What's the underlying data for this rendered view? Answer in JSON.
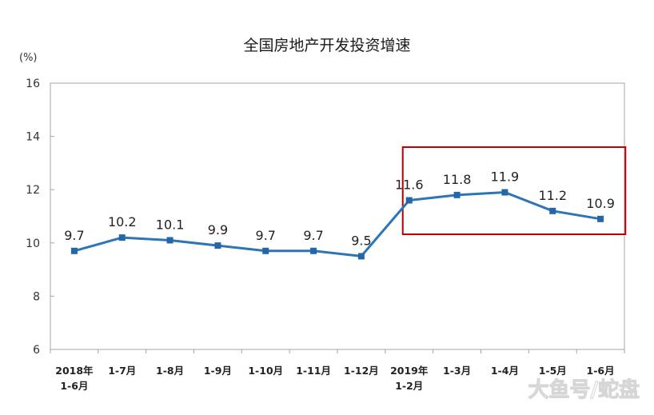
{
  "chart_data": {
    "type": "line",
    "title": "全国房地产开发投资增速",
    "ylabel": "(%)",
    "xlabel": "",
    "categories": [
      [
        "2018年",
        "1-6月"
      ],
      [
        "1-7月"
      ],
      [
        "1-8月"
      ],
      [
        "1-9月"
      ],
      [
        "1-10月"
      ],
      [
        "1-11月"
      ],
      [
        "1-12月"
      ],
      [
        "2019年",
        "1-2月"
      ],
      [
        "1-3月"
      ],
      [
        "1-4月"
      ],
      [
        "1-5月"
      ],
      [
        "1-6月"
      ]
    ],
    "values": [
      9.7,
      10.2,
      10.1,
      9.9,
      9.7,
      9.7,
      9.5,
      11.6,
      11.8,
      11.9,
      11.2,
      10.9
    ],
    "data_labels": [
      "9.7",
      "10.2",
      "10.1",
      "9.9",
      "9.7",
      "9.7",
      "9.5",
      "11.6",
      "11.8",
      "11.9",
      "11.2",
      "10.9"
    ],
    "ylim": [
      6,
      16
    ],
    "yticks": [
      "6",
      "8",
      "10",
      "12",
      "14",
      "16"
    ],
    "grid": false,
    "legend": "none",
    "highlight_range": [
      7,
      10
    ],
    "colors": {
      "line": "#2e75b6",
      "marker": "#2466a8",
      "highlight": "#c00000",
      "axis": "#a6a6a6"
    }
  },
  "watermark": "大鱼号/蛇盘"
}
